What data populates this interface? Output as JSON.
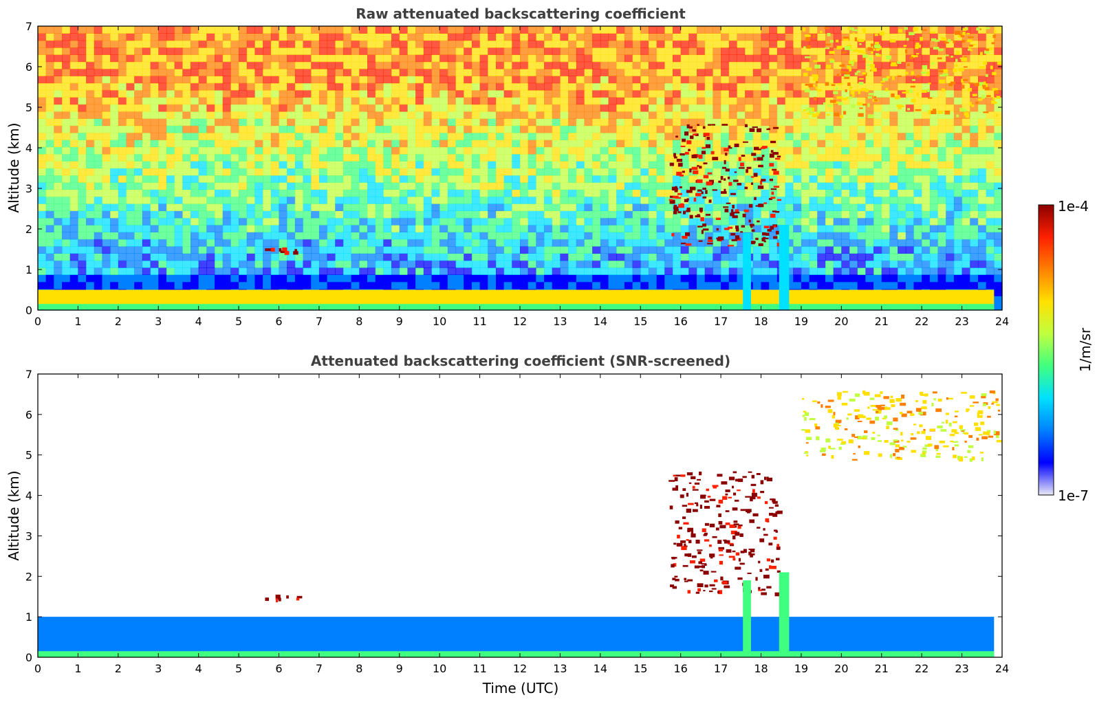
{
  "chart_data": [
    {
      "type": "heatmap",
      "title": "Raw attenuated backscattering coefficient",
      "xlabel": "",
      "ylabel": "Altitude (km)",
      "xlim": [
        0,
        24
      ],
      "ylim": [
        0,
        7
      ],
      "xticks": [
        "0",
        "1",
        "2",
        "3",
        "4",
        "5",
        "6",
        "7",
        "8",
        "9",
        "10",
        "11",
        "12",
        "13",
        "14",
        "15",
        "16",
        "17",
        "18",
        "19",
        "20",
        "21",
        "22",
        "23",
        "24"
      ],
      "yticks": [
        "0",
        "1",
        "2",
        "3",
        "4",
        "5",
        "6",
        "7"
      ],
      "features": [
        {
          "name": "boundary layer",
          "t": [
            0,
            23.8
          ],
          "alt": [
            0,
            0.5
          ],
          "level": "high"
        },
        {
          "name": "low cloud",
          "t": [
            5.6,
            6.4
          ],
          "alt": [
            1.45,
            1.55
          ],
          "level": "max"
        },
        {
          "name": "mid cloud",
          "t": [
            15.7,
            18.4
          ],
          "alt": [
            1.6,
            4.6
          ],
          "level": "max"
        },
        {
          "name": "cirrus",
          "t": [
            19.0,
            23.9
          ],
          "alt": [
            4.8,
            7.0
          ],
          "level": "high"
        },
        {
          "name": "precipitation",
          "t": [
            17.55,
            17.75
          ],
          "alt": [
            0,
            1.9
          ],
          "level": "mid"
        },
        {
          "name": "precipitation",
          "t": [
            18.45,
            18.7
          ],
          "alt": [
            0,
            2.1
          ],
          "level": "mid"
        }
      ]
    },
    {
      "type": "heatmap",
      "title": "Attenuated backscattering coefficient (SNR-screened)",
      "xlabel": "Time (UTC)",
      "ylabel": "Altitude (km)",
      "xlim": [
        0,
        24
      ],
      "ylim": [
        0,
        7
      ],
      "xticks": [
        "0",
        "1",
        "2",
        "3",
        "4",
        "5",
        "6",
        "7",
        "8",
        "9",
        "10",
        "11",
        "12",
        "13",
        "14",
        "15",
        "16",
        "17",
        "18",
        "19",
        "20",
        "21",
        "22",
        "23",
        "24"
      ],
      "yticks": [
        "0",
        "1",
        "2",
        "3",
        "4",
        "5",
        "6",
        "7"
      ],
      "features": [
        {
          "name": "boundary layer",
          "t": [
            0,
            23.8
          ],
          "alt": [
            0,
            1.0
          ],
          "level": "low"
        },
        {
          "name": "low cloud",
          "t": [
            5.6,
            6.5
          ],
          "alt": [
            1.45,
            1.55
          ],
          "level": "max"
        },
        {
          "name": "mid cloud",
          "t": [
            15.7,
            18.4
          ],
          "alt": [
            1.6,
            4.6
          ],
          "level": "max"
        },
        {
          "name": "cirrus",
          "t": [
            19.0,
            23.9
          ],
          "alt": [
            4.9,
            6.6
          ],
          "level": "high"
        },
        {
          "name": "precipitation",
          "t": [
            17.55,
            17.75
          ],
          "alt": [
            0,
            1.9
          ],
          "level": "mid"
        },
        {
          "name": "precipitation",
          "t": [
            18.45,
            18.7
          ],
          "alt": [
            0,
            2.1
          ],
          "level": "mid"
        }
      ]
    }
  ],
  "colorbar": {
    "max_label": "1e-4",
    "min_label": "1e-7",
    "unit_label": "1/m/sr",
    "colors": [
      "#e8e8f6",
      "#0000ff",
      "#0080ff",
      "#00e0ff",
      "#40ff80",
      "#c0ff40",
      "#ffe000",
      "#ff8000",
      "#ff2000",
      "#8b0000"
    ]
  }
}
